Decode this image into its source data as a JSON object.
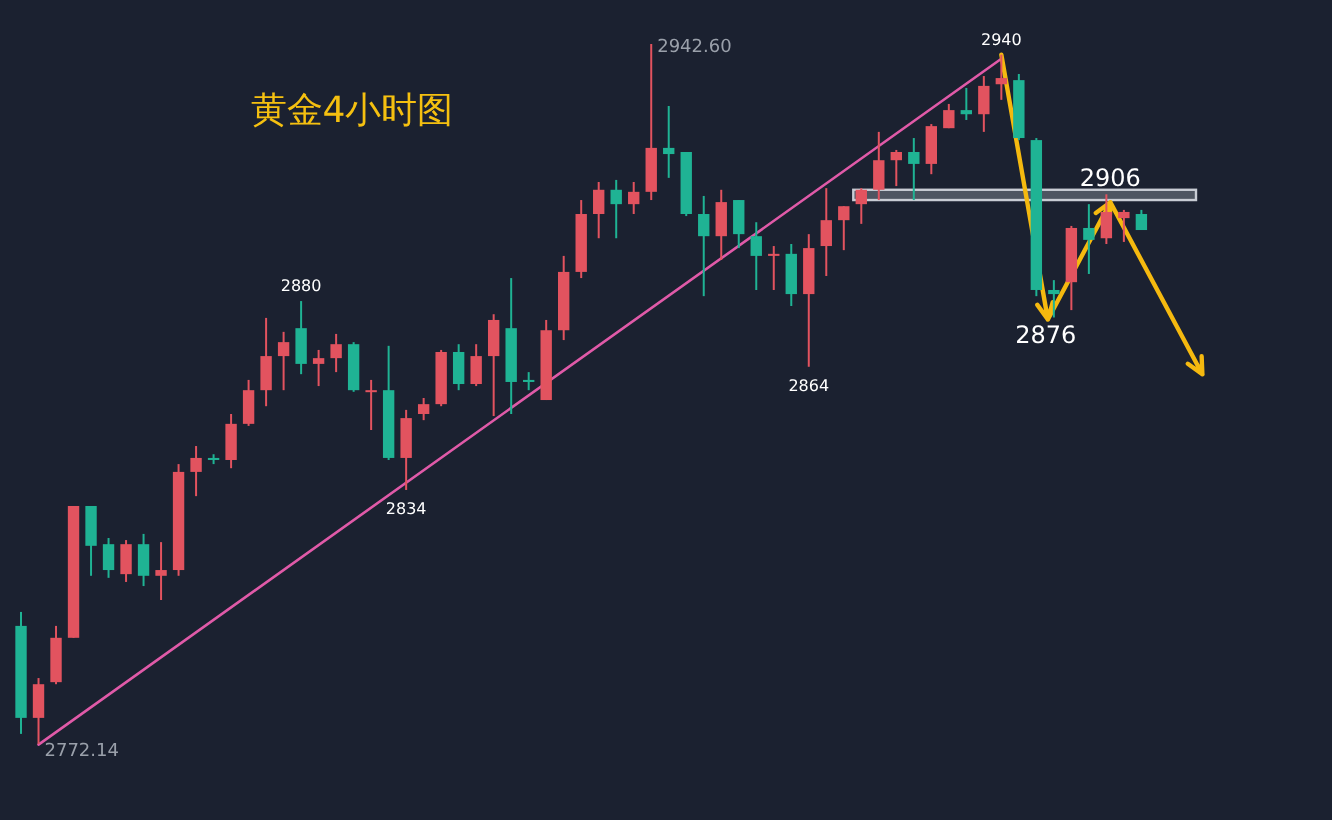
{
  "chart_data": {
    "type": "candlestick",
    "title": "黄金4小时图",
    "categories": [
      null,
      null,
      null,
      null,
      null,
      null,
      null,
      null,
      null,
      null,
      null,
      null,
      null,
      null,
      null,
      null,
      null,
      null,
      null,
      null,
      null,
      null,
      null,
      null,
      null,
      null,
      null,
      null,
      null,
      null,
      null,
      null,
      null,
      null,
      null,
      null,
      null,
      null,
      null,
      null,
      null,
      null,
      null,
      null,
      null,
      null,
      null,
      null,
      null,
      null,
      null,
      null,
      null,
      null,
      null,
      null,
      null,
      null,
      null,
      null,
      null,
      null,
      null,
      null,
      null
    ],
    "ohlc": [
      [
        2800.9,
        2804.3,
        2774.6,
        2778.5
      ],
      [
        2778.5,
        2788.2,
        2772.14,
        2786.7
      ],
      [
        2787.2,
        2800.9,
        2786.7,
        2798.0
      ],
      [
        2798.0,
        2830.1,
        2798.0,
        2830.1
      ],
      [
        2830.1,
        2830.1,
        2813.1,
        2820.4
      ],
      [
        2820.8,
        2822.3,
        2812.6,
        2814.5
      ],
      [
        2813.5,
        2821.8,
        2811.6,
        2820.8
      ],
      [
        2820.8,
        2823.3,
        2810.6,
        2813.1
      ],
      [
        2813.1,
        2821.3,
        2807.2,
        2814.5
      ],
      [
        2814.5,
        2840.3,
        2813.1,
        2838.4
      ],
      [
        2838.4,
        2844.7,
        2832.5,
        2841.8
      ],
      [
        2841.8,
        2842.7,
        2840.3,
        2841.3
      ],
      [
        2841.3,
        2852.5,
        2839.3,
        2850.1
      ],
      [
        2850.1,
        2860.8,
        2849.6,
        2858.3
      ],
      [
        2858.3,
        2875.9,
        2854.4,
        2866.6
      ],
      [
        2866.6,
        2872.5,
        2858.3,
        2870.0
      ],
      [
        2873.4,
        2880,
        2862.2,
        2864.7
      ],
      [
        2864.7,
        2868.1,
        2859.3,
        2866.1
      ],
      [
        2866.1,
        2872.0,
        2862.7,
        2869.5
      ],
      [
        2869.5,
        2870.0,
        2857.9,
        2858.3
      ],
      [
        2857.9,
        2860.8,
        2848.6,
        2858.3
      ],
      [
        2858.3,
        2869.1,
        2841.3,
        2841.8
      ],
      [
        2841.8,
        2853.5,
        2834,
        2851.5
      ],
      [
        2852.5,
        2856.4,
        2851.0,
        2854.9
      ],
      [
        2854.9,
        2868.1,
        2854.4,
        2867.6
      ],
      [
        2867.6,
        2869.5,
        2858.3,
        2859.8
      ],
      [
        2859.8,
        2869.5,
        2859.3,
        2866.6
      ],
      [
        2866.6,
        2876.8,
        2852.0,
        2875.4
      ],
      [
        2873.4,
        2885.6,
        2852.5,
        2860.3
      ],
      [
        2860.8,
        2862.7,
        2858.3,
        2860.3
      ],
      [
        2855.9,
        2875.4,
        2855.9,
        2872.9
      ],
      [
        2872.9,
        2891.0,
        2870.5,
        2887.1
      ],
      [
        2887.1,
        2904.6,
        2885.6,
        2901.2
      ],
      [
        2901.2,
        2909.0,
        2895.3,
        2907.1
      ],
      [
        2907.1,
        2909.5,
        2895.3,
        2903.6
      ],
      [
        2903.6,
        2909.0,
        2901.2,
        2906.6
      ],
      [
        2906.6,
        2942.6,
        2904.6,
        2917.3
      ],
      [
        2917.3,
        2927.5,
        2910.0,
        2915.8
      ],
      [
        2916.3,
        2916.3,
        2900.7,
        2901.2
      ],
      [
        2901.2,
        2905.6,
        2881.2,
        2895.8
      ],
      [
        2895.8,
        2907.1,
        2890.0,
        2904.1
      ],
      [
        2904.6,
        2904.6,
        2892.9,
        2896.3
      ],
      [
        2895.8,
        2899.2,
        2882.7,
        2891.0
      ],
      [
        2891.0,
        2893.4,
        2882.7,
        2891.5
      ],
      [
        2891.5,
        2893.9,
        2878.8,
        2881.7
      ],
      [
        2881.7,
        2896.3,
        2864,
        2892.9
      ],
      [
        2893.4,
        2907.5,
        2886.1,
        2899.7
      ],
      [
        2899.7,
        2903.1,
        2892.4,
        2903.1
      ],
      [
        2903.6,
        2907.5,
        2898.8,
        2907.1
      ],
      [
        2907.1,
        2921.2,
        2904.6,
        2914.3
      ],
      [
        2914.3,
        2916.8,
        2908.0,
        2916.3
      ],
      [
        2916.3,
        2919.7,
        2904.6,
        2913.4
      ],
      [
        2913.4,
        2923.1,
        2910.9,
        2922.6
      ],
      [
        2922.1,
        2928.0,
        2922.1,
        2926.5
      ],
      [
        2926.5,
        2931.9,
        2924.1,
        2925.5
      ],
      [
        2925.5,
        2934.8,
        2921.2,
        2932.4
      ],
      [
        2932.8,
        2940,
        2929.0,
        2934.3
      ],
      [
        2933.8,
        2935.3,
        2919.2,
        2919.7
      ],
      [
        2919.2,
        2919.7,
        2881.2,
        2882.7
      ],
      [
        2882.7,
        2885.1,
        2876,
        2881.7
      ],
      [
        2884.6,
        2898.3,
        2877.8,
        2897.8
      ],
      [
        2897.8,
        2903.6,
        2886.6,
        2894.9
      ],
      [
        2895.3,
        2906,
        2893.9,
        2901.7
      ],
      [
        2900.2,
        2902.2,
        2894.4,
        2901.7
      ],
      [
        2901.2,
        2902.2,
        2897.3,
        2897.3
      ]
    ],
    "colors": [
      "#1fb394",
      "#e2535f",
      "#e2535f",
      "#e2535f",
      "#1fb394",
      "#1fb394",
      "#e2535f",
      "#1fb394",
      "#e2535f",
      "#e2535f",
      "#e2535f",
      "#1fb394",
      "#e2535f",
      "#e2535f",
      "#e2535f",
      "#e2535f",
      "#1fb394",
      "#e2535f",
      "#e2535f",
      "#1fb394",
      "#e2535f",
      "#1fb394",
      "#e2535f",
      "#e2535f",
      "#e2535f",
      "#1fb394",
      "#e2535f",
      "#e2535f",
      "#1fb394",
      "#1fb394",
      "#e2535f",
      "#e2535f",
      "#e2535f",
      "#e2535f",
      "#1fb394",
      "#e2535f",
      "#e2535f",
      "#1fb394",
      "#1fb394",
      "#1fb394",
      "#e2535f",
      "#1fb394",
      "#1fb394",
      "#e2535f",
      "#1fb394",
      "#e2535f",
      "#e2535f",
      "#e2535f",
      "#e2535f",
      "#e2535f",
      "#e2535f",
      "#1fb394",
      "#e2535f",
      "#e2535f",
      "#1fb394",
      "#e2535f",
      "#e2535f",
      "#1fb394",
      "#1fb394",
      "#1fb394",
      "#e2535f",
      "#1fb394",
      "#e2535f",
      "#e2535f",
      "#1fb394"
    ],
    "series": [
      {
        "type": "line",
        "color": "#e05aa8",
        "values": [
          null,
          2772,
          null,
          null,
          null,
          null,
          null,
          null,
          null,
          null,
          null,
          null,
          null,
          null,
          null,
          null,
          null,
          null,
          null,
          null,
          null,
          null,
          null,
          null,
          null,
          null,
          null,
          null,
          null,
          null,
          null,
          null,
          null,
          null,
          null,
          null,
          null,
          null,
          null,
          null,
          null,
          null,
          null,
          null,
          null,
          null,
          null,
          null,
          null,
          null,
          null,
          null,
          null,
          null,
          null,
          null,
          2939,
          null,
          null,
          null,
          null,
          null,
          null,
          null,
          null
        ]
      }
    ],
    "bands": [
      {
        "axis": "y",
        "from": 2904.6,
        "to": 2907.1,
        "color": "#c8ccd4"
      }
    ],
    "annotations": [
      "2942.60",
      {
        "text": "2880",
        "y": 2880
      },
      {
        "text": "2834",
        "y": 2834
      },
      {
        "text": "2864",
        "y": 2864
      },
      "2772.14",
      {
        "text": "2940",
        "y": 2940
      },
      {
        "text": "2876",
        "y": 2876
      },
      {
        "text": "2906",
        "y": 2906
      }
    ]
  }
}
